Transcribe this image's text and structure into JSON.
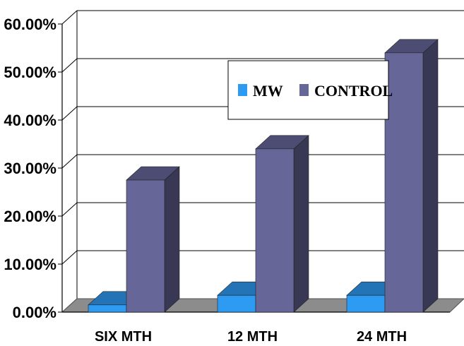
{
  "chart_data": {
    "type": "bar",
    "style": "3d-column",
    "title": "",
    "xlabel": "",
    "ylabel": "",
    "categories": [
      "SIX MTH",
      "12 MTH",
      "24 MTH"
    ],
    "series": [
      {
        "name": "MW",
        "values": [
          0.015,
          0.035,
          0.035
        ],
        "color": "#2E9BF2"
      },
      {
        "name": "CONTROL",
        "values": [
          0.275,
          0.34,
          0.54
        ],
        "color": "#666699"
      }
    ],
    "ylim": [
      0,
      0.6
    ],
    "yticks": [
      "0.00%",
      "10.00%",
      "20.00%",
      "30.00%",
      "40.00%",
      "50.00%",
      "60.00%"
    ],
    "grid": true,
    "legend_position": "top-right"
  }
}
